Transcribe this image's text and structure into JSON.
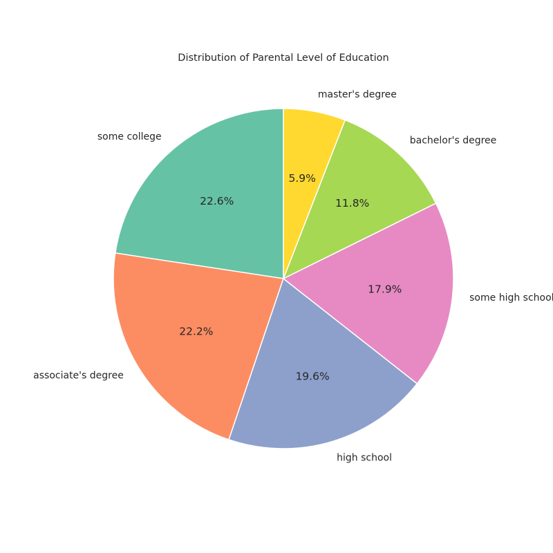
{
  "chart_data": {
    "type": "pie",
    "title": "Distribution of Parental Level of Education",
    "start_angle_deg": 90,
    "direction": "counterclockwise",
    "slices": [
      {
        "label": "some college",
        "value": 22.6,
        "pct_label": "22.6%",
        "color": "#66c2a5"
      },
      {
        "label": "associate's degree",
        "value": 22.2,
        "pct_label": "22.2%",
        "color": "#fc8d62"
      },
      {
        "label": "high school",
        "value": 19.6,
        "pct_label": "19.6%",
        "color": "#8da0cb"
      },
      {
        "label": "some high school",
        "value": 17.9,
        "pct_label": "17.9%",
        "color": "#e78ac3"
      },
      {
        "label": "bachelor's degree",
        "value": 11.8,
        "pct_label": "11.8%",
        "color": "#a6d854"
      },
      {
        "label": "master's degree",
        "value": 5.9,
        "pct_label": "5.9%",
        "color": "#ffd92f"
      }
    ]
  }
}
